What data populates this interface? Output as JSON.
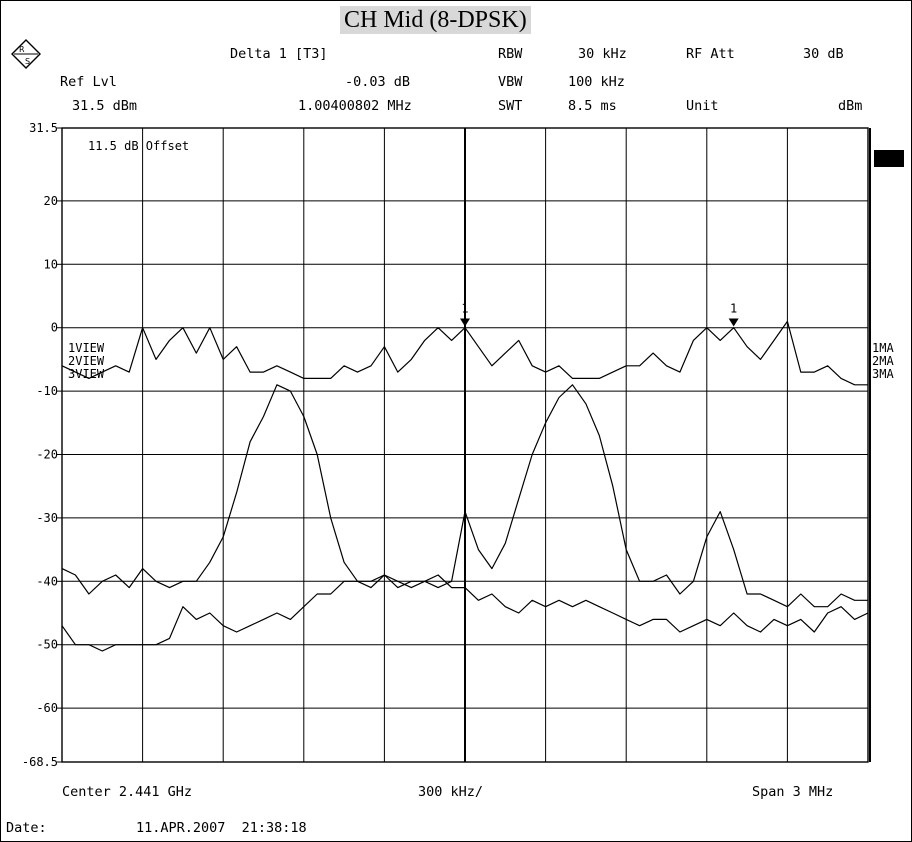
{
  "title": "CH Mid (8-DPSK)",
  "header": {
    "ref_lvl_label": "Ref Lvl",
    "ref_lvl_value": "31.5 dBm",
    "delta_label": "Delta 1 [T3]",
    "delta_level": "-0.03 dB",
    "delta_freq": "1.00400802 MHz",
    "rbw_label": "RBW",
    "rbw_value": "30 kHz",
    "vbw_label": "VBW",
    "vbw_value": "100 kHz",
    "swt_label": "SWT",
    "swt_value": "8.5 ms",
    "rf_att_label": "RF Att",
    "rf_att_value": "30 dB",
    "unit_label": "Unit",
    "unit_value": "dBm"
  },
  "offset_label": "11.5 dB Offset",
  "left_trace_labels": [
    "1VIEW",
    "2VIEW",
    "3VIEW"
  ],
  "right_trace_labels": [
    "1MA",
    "2MA",
    "3MA"
  ],
  "marker_labels": [
    "1",
    "1"
  ],
  "footer": {
    "center": "Center 2.441 GHz",
    "per_div": "300 kHz/",
    "span": "Span 3 MHz",
    "date_label": "Date:",
    "date_value": "11.APR.2007  21:38:18"
  },
  "chart_data": {
    "type": "line",
    "xlabel": "",
    "ylabel": "",
    "x_unit": "MHz offset from 2.441 GHz",
    "xlim": [
      -1.5,
      1.5
    ],
    "ylim": [
      -68.5,
      31.5
    ],
    "y_ticks": [
      31.5,
      20,
      10,
      0,
      -10,
      -20,
      -30,
      -40,
      -50,
      -60,
      -68.5
    ],
    "grid": true,
    "series": [
      {
        "color": "#000000",
        "x": [
          -1.5,
          -1.45,
          -1.4,
          -1.35,
          -1.3,
          -1.25,
          -1.2,
          -1.15,
          -1.1,
          -1.05,
          -1.0,
          -0.95,
          -0.9,
          -0.85,
          -0.8,
          -0.75,
          -0.7,
          -0.65,
          -0.6,
          -0.55,
          -0.5,
          -0.45,
          -0.4,
          -0.35,
          -0.3,
          -0.25,
          -0.2,
          -0.15,
          -0.1,
          -0.05,
          0.0,
          0.05,
          0.1,
          0.15,
          0.2,
          0.25,
          0.3,
          0.35,
          0.4,
          0.45,
          0.5,
          0.55,
          0.6,
          0.65,
          0.7,
          0.75,
          0.8,
          0.85,
          0.9,
          0.95,
          1.0,
          1.05,
          1.1,
          1.15,
          1.2,
          1.25,
          1.3,
          1.35,
          1.4,
          1.45,
          1.5
        ],
        "y": [
          -6,
          -7,
          -8,
          -7,
          -6,
          -7,
          0,
          -5,
          -2,
          0,
          -4,
          0,
          -5,
          -3,
          -7,
          -7,
          -6,
          -7,
          -8,
          -8,
          -8,
          -6,
          -7,
          -6,
          -3,
          -7,
          -5,
          -2,
          0,
          -2,
          0,
          -3,
          -6,
          -4,
          -2,
          -6,
          -7,
          -6,
          -8,
          -8,
          -8,
          -7,
          -6,
          -6,
          -4,
          -6,
          -7,
          -2,
          0,
          -2,
          0,
          -3,
          -5,
          -2,
          1,
          -7,
          -7,
          -6,
          -8,
          -9,
          -9
        ]
      },
      {
        "color": "#000000",
        "x": [
          -1.5,
          -1.45,
          -1.4,
          -1.35,
          -1.3,
          -1.25,
          -1.2,
          -1.15,
          -1.1,
          -1.05,
          -1.0,
          -0.95,
          -0.9,
          -0.85,
          -0.8,
          -0.75,
          -0.7,
          -0.65,
          -0.6,
          -0.55,
          -0.5,
          -0.45,
          -0.4,
          -0.35,
          -0.3,
          -0.25,
          -0.2,
          -0.15,
          -0.1,
          -0.05,
          0.0,
          0.05,
          0.1,
          0.15,
          0.2,
          0.25,
          0.3,
          0.35,
          0.4,
          0.45,
          0.5,
          0.55,
          0.6,
          0.65,
          0.7,
          0.75,
          0.8,
          0.85,
          0.9,
          0.95,
          1.0,
          1.05,
          1.1,
          1.15,
          1.2,
          1.25,
          1.3,
          1.35,
          1.4,
          1.45,
          1.5
        ],
        "y": [
          -38,
          -39,
          -42,
          -40,
          -39,
          -41,
          -38,
          -40,
          -41,
          -40,
          -40,
          -37,
          -33,
          -26,
          -18,
          -14,
          -9,
          -10,
          -14,
          -20,
          -30,
          -37,
          -40,
          -40,
          -39,
          -40,
          -41,
          -40,
          -41,
          -40,
          -29,
          -35,
          -38,
          -34,
          -27,
          -20,
          -15,
          -11,
          -9,
          -12,
          -17,
          -25,
          -35,
          -40,
          -40,
          -39,
          -42,
          -40,
          -33,
          -29,
          -35,
          -42,
          -42,
          -43,
          -44,
          -42,
          -44,
          -44,
          -42,
          -43,
          -43
        ]
      },
      {
        "color": "#000000",
        "x": [
          -1.5,
          -1.45,
          -1.4,
          -1.35,
          -1.3,
          -1.25,
          -1.2,
          -1.15,
          -1.1,
          -1.05,
          -1.0,
          -0.95,
          -0.9,
          -0.85,
          -0.8,
          -0.75,
          -0.7,
          -0.65,
          -0.6,
          -0.55,
          -0.5,
          -0.45,
          -0.4,
          -0.35,
          -0.3,
          -0.25,
          -0.2,
          -0.15,
          -0.1,
          -0.05,
          0.0,
          0.05,
          0.1,
          0.15,
          0.2,
          0.25,
          0.3,
          0.35,
          0.4,
          0.45,
          0.5,
          0.55,
          0.6,
          0.65,
          0.7,
          0.75,
          0.8,
          0.85,
          0.9,
          0.95,
          1.0,
          1.05,
          1.1,
          1.15,
          1.2,
          1.25,
          1.3,
          1.35,
          1.4,
          1.45,
          1.5
        ],
        "y": [
          -47,
          -50,
          -50,
          -51,
          -50,
          -50,
          -50,
          -50,
          -49,
          -44,
          -46,
          -45,
          -47,
          -48,
          -47,
          -46,
          -45,
          -46,
          -44,
          -42,
          -42,
          -40,
          -40,
          -41,
          -39,
          -41,
          -40,
          -40,
          -39,
          -41,
          -41,
          -43,
          -42,
          -44,
          -45,
          -43,
          -44,
          -43,
          -44,
          -43,
          -44,
          -45,
          -46,
          -47,
          -46,
          -46,
          -48,
          -47,
          -46,
          -47,
          -45,
          -47,
          -48,
          -46,
          -47,
          -46,
          -48,
          -45,
          -44,
          -46,
          -45
        ]
      }
    ],
    "markers": [
      {
        "label": "1",
        "x": 0.0,
        "y": 0.5
      },
      {
        "label": "1",
        "x": 1.0,
        "y": 0.5
      }
    ]
  }
}
